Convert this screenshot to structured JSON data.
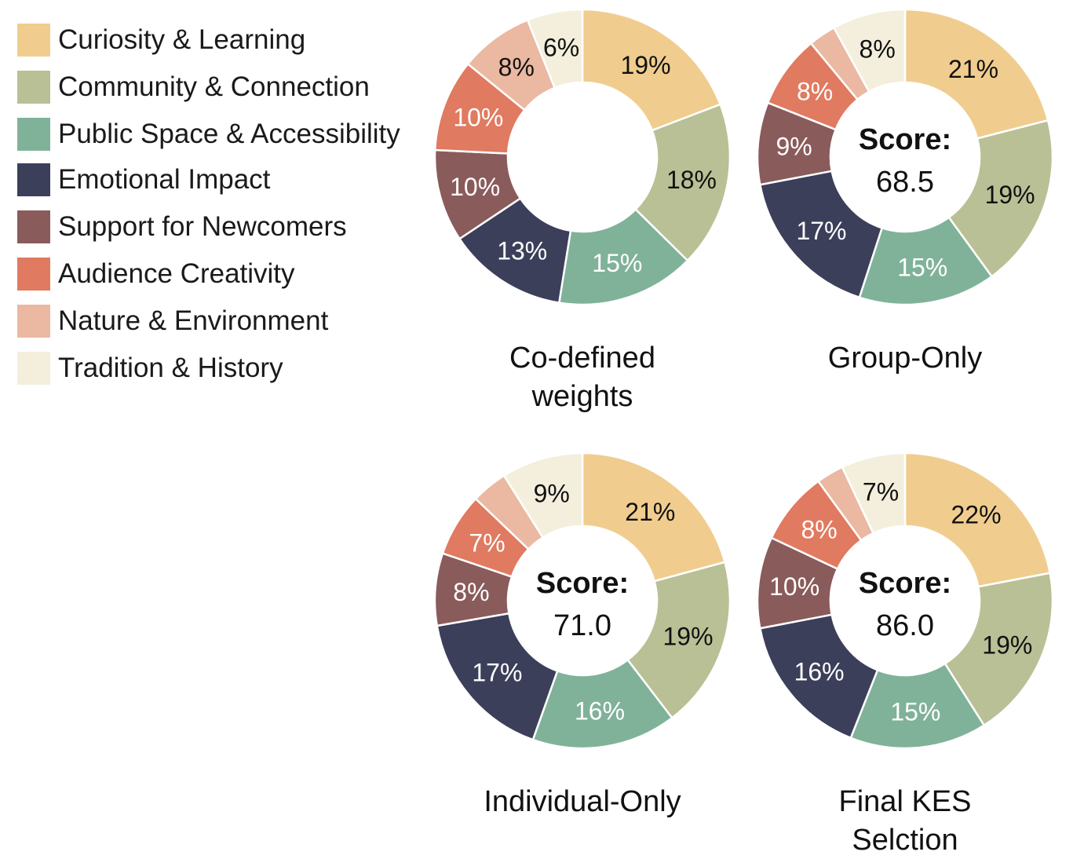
{
  "legend": {
    "items": [
      {
        "label": "Curiosity & Learning",
        "color": "#F0CD8E"
      },
      {
        "label": "Community & Connection",
        "color": "#B9C095"
      },
      {
        "label": "Public Space & Accessibility",
        "color": "#80B29A"
      },
      {
        "label": "Emotional Impact",
        "color": "#3C3F5A"
      },
      {
        "label": "Support for Newcomers",
        "color": "#8A5B5B"
      },
      {
        "label": "Audience Creativity",
        "color": "#E07A60"
      },
      {
        "label": "Nature & Environment",
        "color": "#EBB8A2"
      },
      {
        "label": "Tradition & History",
        "color": "#F3EFDC"
      }
    ]
  },
  "chart_data": [
    {
      "type": "pie",
      "title_lines": [
        "Co-defined",
        "weights"
      ],
      "score_label": null,
      "score": null,
      "categories": [
        "Curiosity & Learning",
        "Community & Connection",
        "Public Space & Accessibility",
        "Emotional Impact",
        "Support for Newcomers",
        "Audience Creativity",
        "Nature & Environment",
        "Tradition & History"
      ],
      "values": [
        19,
        18,
        15,
        13,
        10,
        10,
        8,
        6
      ],
      "value_labels": [
        "19%",
        "18%",
        "15%",
        "13%",
        "10%",
        "10%",
        "8%",
        "6%"
      ]
    },
    {
      "type": "pie",
      "title_lines": [
        "Group-Only"
      ],
      "score_label": "Score:",
      "score": "68.5",
      "categories": [
        "Curiosity & Learning",
        "Community & Connection",
        "Public Space & Accessibility",
        "Emotional Impact",
        "Support for Newcomers",
        "Audience Creativity",
        "Nature & Environment",
        "Tradition & History"
      ],
      "values": [
        21,
        19,
        15,
        17,
        9,
        8,
        3,
        8
      ],
      "value_labels": [
        "21%",
        "19%",
        "15%",
        "17%",
        "9%",
        "8%",
        "",
        "8%"
      ]
    },
    {
      "type": "pie",
      "title_lines": [
        "Individual-Only"
      ],
      "score_label": "Score:",
      "score": "71.0",
      "categories": [
        "Curiosity & Learning",
        "Community & Connection",
        "Public Space & Accessibility",
        "Emotional Impact",
        "Support for Newcomers",
        "Audience Creativity",
        "Nature & Environment",
        "Tradition & History"
      ],
      "values": [
        21,
        19,
        16,
        17,
        8,
        7,
        4,
        9
      ],
      "value_labels": [
        "21%",
        "19%",
        "16%",
        "17%",
        "8%",
        "7%",
        "",
        "9%"
      ]
    },
    {
      "type": "pie",
      "title_lines": [
        "Final KES",
        "Selction"
      ],
      "score_label": "Score:",
      "score": "86.0",
      "categories": [
        "Curiosity & Learning",
        "Community & Connection",
        "Public Space & Accessibility",
        "Emotional Impact",
        "Support for Newcomers",
        "Audience Creativity",
        "Nature & Environment",
        "Tradition & History"
      ],
      "values": [
        22,
        19,
        15,
        16,
        10,
        8,
        3,
        7
      ],
      "value_labels": [
        "22%",
        "19%",
        "15%",
        "16%",
        "10%",
        "8%",
        "",
        "7%"
      ]
    }
  ]
}
